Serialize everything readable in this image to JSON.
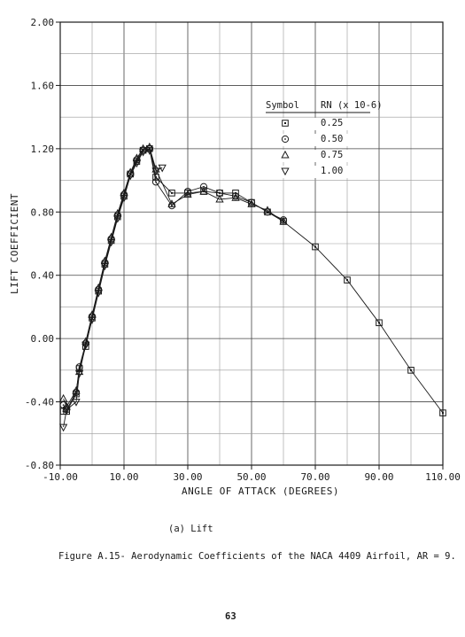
{
  "chart_data": {
    "type": "scatter",
    "title": "",
    "xlabel": "ANGLE OF ATTACK   (DEGREES)",
    "ylabel": "LIFT COEFFICIENT",
    "xlim": [
      -10,
      110
    ],
    "ylim": [
      -0.8,
      2.0
    ],
    "xticks": [
      -10,
      10,
      30,
      50,
      70,
      90,
      110
    ],
    "xtick_labels": [
      "-10.00",
      "10.00",
      "30.00",
      "50.00",
      "70.00",
      "90.00",
      "110.00"
    ],
    "yticks": [
      -0.8,
      -0.4,
      0.0,
      0.4,
      0.8,
      1.2,
      1.6,
      2.0
    ],
    "ytick_labels": [
      "-0.80",
      "-0.40",
      "0.00",
      "0.40",
      "0.80",
      "1.20",
      "1.60",
      "2.00"
    ],
    "grid": true,
    "legend_position": "top-right",
    "legend_header": [
      "Symbol",
      "RN (x 10-6)"
    ],
    "series": [
      {
        "name": "0.25",
        "marker": "square",
        "x": [
          -9,
          -8,
          -5,
          -4,
          -2,
          0,
          2,
          4,
          6,
          8,
          10,
          12,
          14,
          16,
          18,
          20,
          25,
          30,
          35,
          40,
          45,
          50,
          55,
          60,
          70,
          80,
          90,
          100,
          110
        ],
        "y": [
          -0.46,
          -0.46,
          -0.35,
          -0.19,
          -0.05,
          0.13,
          0.3,
          0.47,
          0.62,
          0.77,
          0.9,
          1.04,
          1.12,
          1.19,
          1.2,
          1.02,
          0.92,
          0.92,
          0.93,
          0.92,
          0.92,
          0.86,
          0.8,
          0.74,
          0.58,
          0.37,
          0.1,
          -0.2,
          -0.47
        ]
      },
      {
        "name": "0.50",
        "marker": "circle",
        "x": [
          -9,
          -8,
          -5,
          -4,
          -2,
          0,
          2,
          4,
          6,
          8,
          10,
          12,
          14,
          16,
          18,
          20,
          25,
          30,
          35,
          40,
          45,
          50,
          55,
          60
        ],
        "y": [
          -0.42,
          -0.45,
          -0.34,
          -0.18,
          -0.03,
          0.14,
          0.31,
          0.48,
          0.63,
          0.78,
          0.91,
          1.04,
          1.13,
          1.19,
          1.2,
          0.99,
          0.84,
          0.93,
          0.96,
          0.92,
          0.9,
          0.86,
          0.8,
          0.75
        ]
      },
      {
        "name": "0.75",
        "marker": "triangle-up",
        "x": [
          -9,
          -8,
          -5,
          -4,
          -2,
          0,
          2,
          4,
          6,
          8,
          10,
          12,
          14,
          16,
          18,
          20,
          25,
          30,
          35,
          40,
          45,
          50,
          55,
          60
        ],
        "y": [
          -0.38,
          -0.43,
          -0.33,
          -0.21,
          -0.02,
          0.15,
          0.32,
          0.49,
          0.64,
          0.79,
          0.92,
          1.05,
          1.14,
          1.2,
          1.21,
          1.07,
          0.85,
          0.91,
          0.93,
          0.88,
          0.89,
          0.85,
          0.81,
          0.74
        ]
      },
      {
        "name": "1.00",
        "marker": "triangle-down",
        "x": [
          -9,
          -8,
          -5,
          -4,
          -2,
          0,
          2,
          4,
          6,
          8,
          10,
          12,
          14,
          16,
          18,
          20,
          22
        ],
        "y": [
          -0.56,
          -0.45,
          -0.4,
          -0.22,
          -0.04,
          0.12,
          0.29,
          0.46,
          0.61,
          0.76,
          0.89,
          1.03,
          1.11,
          1.18,
          1.19,
          1.06,
          1.08
        ]
      }
    ]
  },
  "sublabel": "(a)  Lift",
  "caption": "Figure A.15- Aerodynamic Coefficients of the NACA 4409 Airfoil, AR = 9.",
  "page_number": "63"
}
